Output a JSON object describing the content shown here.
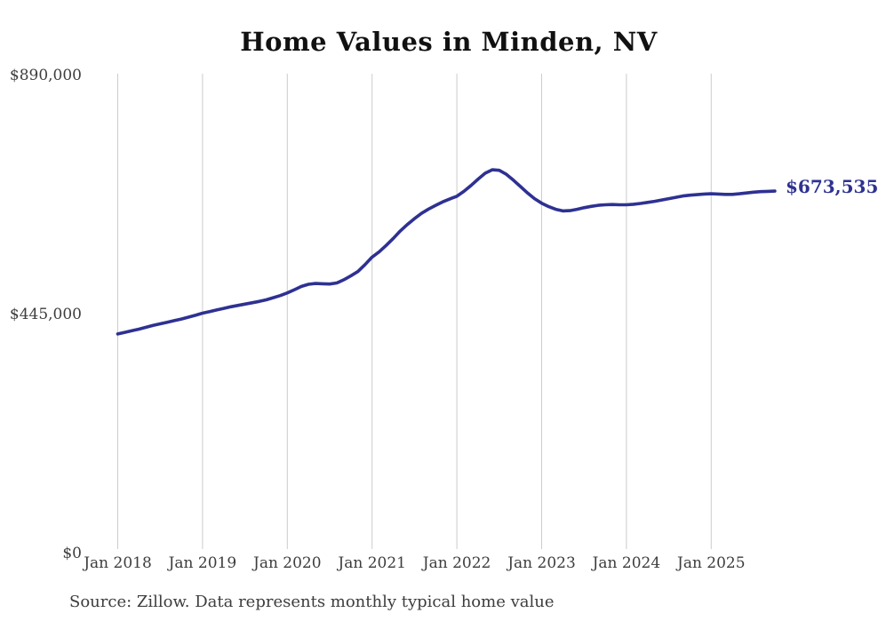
{
  "chart_data": {
    "type": "line",
    "title": "Home Values in Minden, NV",
    "series_name": "Monthly typical home value",
    "x": [
      "2018-01",
      "2018-02",
      "2018-03",
      "2018-04",
      "2018-05",
      "2018-06",
      "2018-07",
      "2018-08",
      "2018-09",
      "2018-10",
      "2018-11",
      "2018-12",
      "2019-01",
      "2019-02",
      "2019-03",
      "2019-04",
      "2019-05",
      "2019-06",
      "2019-07",
      "2019-08",
      "2019-09",
      "2019-10",
      "2019-11",
      "2019-12",
      "2020-01",
      "2020-02",
      "2020-03",
      "2020-04",
      "2020-05",
      "2020-06",
      "2020-07",
      "2020-08",
      "2020-09",
      "2020-10",
      "2020-11",
      "2020-12",
      "2021-01",
      "2021-02",
      "2021-03",
      "2021-04",
      "2021-05",
      "2021-06",
      "2021-07",
      "2021-08",
      "2021-09",
      "2021-10",
      "2021-11",
      "2021-12",
      "2022-01",
      "2022-02",
      "2022-03",
      "2022-04",
      "2022-05",
      "2022-06",
      "2022-07",
      "2022-08",
      "2022-09",
      "2022-10",
      "2022-11",
      "2022-12",
      "2023-01",
      "2023-02",
      "2023-03",
      "2023-04",
      "2023-05",
      "2023-06",
      "2023-07",
      "2023-08",
      "2023-09",
      "2023-10",
      "2023-11",
      "2023-12",
      "2024-01",
      "2024-02",
      "2024-03",
      "2024-04",
      "2024-05",
      "2024-06",
      "2024-07",
      "2024-08",
      "2024-09",
      "2024-10",
      "2024-11",
      "2024-12",
      "2025-01",
      "2025-02",
      "2025-03",
      "2025-04",
      "2025-05",
      "2025-06",
      "2025-07",
      "2025-08",
      "2025-09",
      "2025-10"
    ],
    "values": [
      406000,
      409000,
      412000,
      415000,
      418500,
      422000,
      425000,
      428000,
      431000,
      434000,
      437500,
      441000,
      445000,
      448000,
      451000,
      454000,
      457000,
      459500,
      462000,
      464500,
      467000,
      470000,
      474000,
      478000,
      483000,
      489000,
      495000,
      499000,
      500500,
      500000,
      499500,
      501500,
      507500,
      515000,
      523000,
      536000,
      550000,
      560000,
      572000,
      585000,
      599000,
      611000,
      622000,
      632000,
      640000,
      647000,
      653500,
      659000,
      664000,
      673000,
      684000,
      696000,
      707000,
      713500,
      712500,
      705000,
      694000,
      682000,
      670000,
      659500,
      651000,
      644500,
      639500,
      636500,
      637000,
      639500,
      642500,
      645000,
      647000,
      648000,
      648500,
      648000,
      648000,
      649000,
      650500,
      652500,
      654500,
      657000,
      659500,
      662000,
      664500,
      666000,
      667000,
      668000,
      668500,
      668000,
      667500,
      667500,
      668500,
      670000,
      671500,
      672500,
      673000,
      673535
    ],
    "ylim": [
      0,
      890000
    ],
    "y_ticks": [
      {
        "value": 0,
        "label": "$0"
      },
      {
        "value": 445000,
        "label": "$445,000"
      },
      {
        "value": 890000,
        "label": "$890,000"
      }
    ],
    "x_ticks": [
      {
        "value": "2018-01",
        "label": "Jan 2018"
      },
      {
        "value": "2019-01",
        "label": "Jan 2019"
      },
      {
        "value": "2020-01",
        "label": "Jan 2020"
      },
      {
        "value": "2021-01",
        "label": "Jan 2021"
      },
      {
        "value": "2022-01",
        "label": "Jan 2022"
      },
      {
        "value": "2023-01",
        "label": "Jan 2023"
      },
      {
        "value": "2024-01",
        "label": "Jan 2024"
      },
      {
        "value": "2025-01",
        "label": "Jan 2025"
      }
    ],
    "grid": "vertical-only",
    "legend": "none",
    "end_label": "$673,535",
    "line_color": "#2e3192",
    "end_label_color": "#2e3192",
    "axis_text_color": "#3d3d3d",
    "grid_color": "#cccccc",
    "title_color": "#111111",
    "source_note": "Source: Zillow. Data represents monthly typical home value"
  }
}
